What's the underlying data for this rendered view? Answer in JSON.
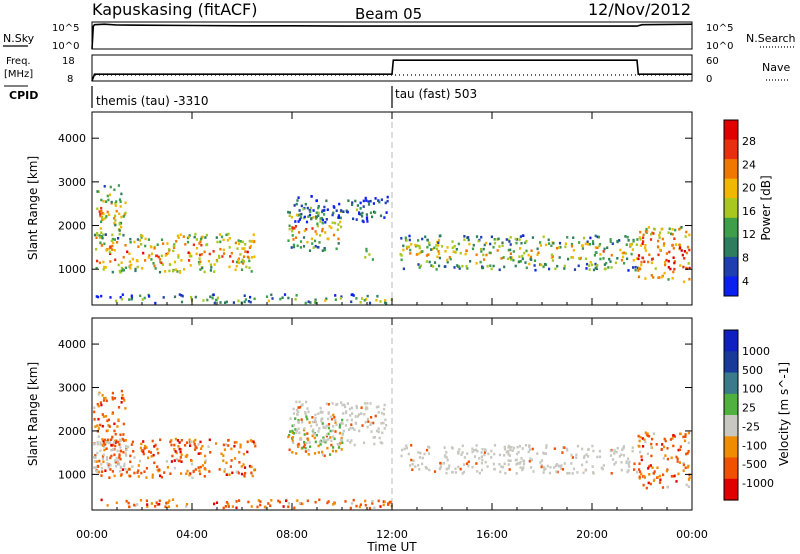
{
  "header": {
    "station": "Kapuskasing (fitACF)",
    "beam": "Beam 05",
    "date": "12/Nov/2012"
  },
  "noise_panel": {
    "left_label": "N.Sky",
    "right_label": "N.Search",
    "left_ticks": [
      "10^5",
      "10^0"
    ],
    "right_ticks": [
      "10^5",
      "10^0"
    ]
  },
  "freq_panel": {
    "left_label_line1": "Freq.",
    "left_label_line2": "[MHz]",
    "right_label": "Nave",
    "left_ticks": [
      "18",
      "8"
    ],
    "right_ticks": [
      "60",
      "0"
    ]
  },
  "cpid_panel": {
    "label": "CPID",
    "segments": [
      {
        "text": "themis (tau) -3310",
        "start_hour": 0
      },
      {
        "text": "tau (fast) 503",
        "start_hour": 12
      }
    ]
  },
  "colors": {
    "power_scale": [
      "#0a1ff0",
      "#1f3fb0",
      "#2e7d5e",
      "#3f9e4a",
      "#a8c820",
      "#f0b800",
      "#f07800",
      "#e83010",
      "#e00000"
    ],
    "velocity_scale": [
      "#e00000",
      "#f05000",
      "#f08c00",
      "#c8c8c0",
      "#50b040",
      "#3a7a8a",
      "#1a3a9a",
      "#1020c0"
    ],
    "ground_scatter": "#c8c8c0"
  },
  "chart_data": [
    {
      "type": "line",
      "name": "noise",
      "x": [
        0,
        0.05,
        0.1,
        0.5,
        1,
        2,
        4,
        6,
        8,
        10,
        12,
        14,
        16,
        18,
        20,
        21.8,
        22,
        24
      ],
      "y_log10": [
        0,
        4.2,
        4.5,
        4.6,
        4.45,
        4.4,
        4.35,
        4.3,
        4.3,
        4.25,
        4.25,
        4.25,
        4.25,
        4.25,
        4.25,
        4.25,
        4.5,
        4.6
      ],
      "xlim": [
        0,
        24
      ],
      "ylim_log10": [
        0,
        5
      ]
    },
    {
      "type": "line",
      "name": "frequency",
      "x": [
        0,
        0.1,
        12,
        12.05,
        21.8,
        21.85,
        24
      ],
      "y": [
        8,
        10.6,
        10.6,
        16,
        16,
        10.6,
        10.6
      ],
      "xlim": [
        0,
        24
      ],
      "ylim": [
        8,
        18
      ]
    },
    {
      "type": "heatmap",
      "name": "power",
      "xlabel": "",
      "ylabel": "Slant Range [km]",
      "colorbar_label": "Power [dB]",
      "colorbar_ticks": [
        "28",
        "24",
        "20",
        "16",
        "12",
        "8",
        "4"
      ],
      "y_ticks": [
        "1000",
        "2000",
        "3000",
        "4000"
      ],
      "xlim": [
        0,
        24
      ],
      "ylim": [
        180,
        4600
      ],
      "regions": [
        {
          "x0": 0.0,
          "x1": 1.3,
          "y0": 1700,
          "y1": 2950,
          "level": 0.5
        },
        {
          "x0": 0.0,
          "x1": 6.5,
          "y0": 950,
          "y1": 1850,
          "level": 0.6
        },
        {
          "x0": 7.8,
          "x1": 10.0,
          "y0": 1450,
          "y1": 2400,
          "level": 0.5
        },
        {
          "x0": 8.0,
          "x1": 11.8,
          "y0": 2100,
          "y1": 2700,
          "level": 0.15
        },
        {
          "x0": 10.8,
          "x1": 11.2,
          "y0": 1250,
          "y1": 1550,
          "level": 0.5
        },
        {
          "x0": 12.3,
          "x1": 21.8,
          "y0": 1000,
          "y1": 1800,
          "level": 0.45
        },
        {
          "x0": 21.8,
          "x1": 24.0,
          "y0": 700,
          "y1": 2000,
          "level": 0.7
        },
        {
          "x0": 0.0,
          "x1": 12.0,
          "y0": 200,
          "y1": 450,
          "level": 0.3
        }
      ]
    },
    {
      "type": "heatmap",
      "name": "velocity",
      "xlabel": "Time UT",
      "ylabel": "Slant Range [km]",
      "colorbar_label": "Velocity [m s^-1]",
      "colorbar_ticks": [
        "1000",
        "500",
        "100",
        "25",
        "-25",
        "-100",
        "-500",
        "-1000"
      ],
      "y_ticks": [
        "1000",
        "2000",
        "3000",
        "4000"
      ],
      "x_ticks": [
        "00:00",
        "04:00",
        "08:00",
        "12:00",
        "16:00",
        "20:00",
        "00:00"
      ],
      "xlim": [
        0,
        24
      ],
      "ylim": [
        180,
        4600
      ],
      "regions": [
        {
          "x0": 0.0,
          "x1": 1.3,
          "y0": 1700,
          "y1": 2950,
          "kind": "neg"
        },
        {
          "x0": 0.0,
          "x1": 6.5,
          "y0": 950,
          "y1": 1850,
          "kind": "neg"
        },
        {
          "x0": 0.0,
          "x1": 1.5,
          "y0": 1100,
          "y1": 1800,
          "kind": "gs"
        },
        {
          "x0": 7.8,
          "x1": 10.0,
          "y0": 1450,
          "y1": 2400,
          "kind": "mix"
        },
        {
          "x0": 8.0,
          "x1": 11.8,
          "y0": 1700,
          "y1": 2700,
          "kind": "gs"
        },
        {
          "x0": 12.3,
          "x1": 21.8,
          "y0": 1050,
          "y1": 1700,
          "kind": "gs"
        },
        {
          "x0": 21.8,
          "x1": 24.0,
          "y0": 700,
          "y1": 2000,
          "kind": "neg"
        },
        {
          "x0": 0.0,
          "x1": 12.0,
          "y0": 200,
          "y1": 450,
          "kind": "neg"
        }
      ]
    }
  ]
}
